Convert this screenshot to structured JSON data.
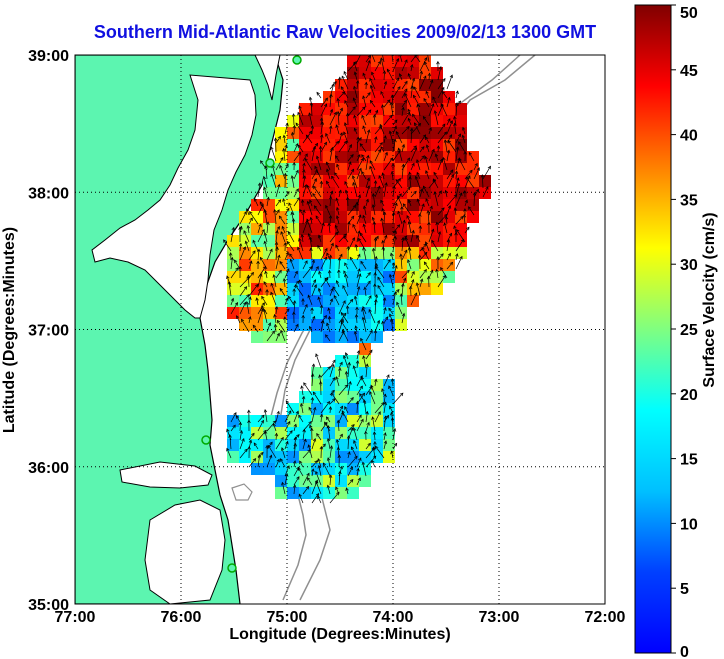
{
  "chart_data": {
    "type": "heatmap",
    "title": "Southern Mid-Atlantic Raw Velocities 2009/02/13 1300 GMT",
    "xlabel": "Longitude (Degrees:Minutes)",
    "ylabel": "Latitude (Degrees:Minutes)",
    "xlim": [
      -77,
      -72
    ],
    "ylim": [
      35,
      39
    ],
    "x_ticks": [
      "77:00",
      "76:00",
      "75:00",
      "74:00",
      "73:00",
      "72:00"
    ],
    "y_ticks": [
      "35:00",
      "36:00",
      "37:00",
      "38:00",
      "39:00"
    ],
    "grid": true,
    "colorbar": {
      "label": "Surface Velocity (cm/s)",
      "range": [
        0,
        50
      ],
      "ticks": [
        "0",
        "5",
        "10",
        "15",
        "20",
        "25",
        "30",
        "35",
        "40",
        "45",
        "50"
      ],
      "colormap": "jet"
    }
  }
}
